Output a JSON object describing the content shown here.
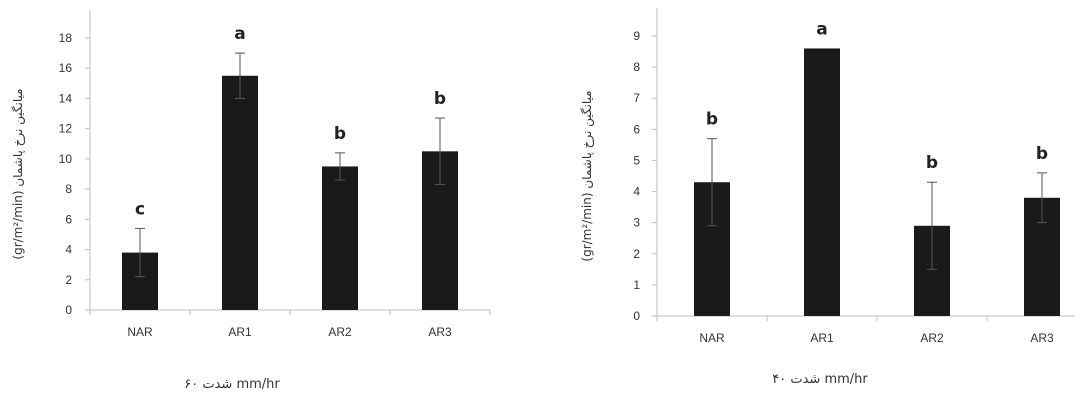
{
  "chart_data": [
    {
      "type": "bar",
      "categories": [
        "NAR",
        "AR1",
        "AR2",
        "AR3"
      ],
      "values": [
        3.8,
        15.5,
        9.5,
        10.5
      ],
      "errors": [
        1.6,
        1.5,
        0.9,
        2.2
      ],
      "significance": [
        "c",
        "a",
        "b",
        "b"
      ],
      "ylim": [
        0,
        18
      ],
      "yticks": [
        "0",
        "2",
        "4",
        "6",
        "8",
        "10",
        "12",
        "14",
        "16",
        "18"
      ],
      "ylabel": "(gr/m²/min) میانگین نرخ پاشمان",
      "xlabel": "شدت ۶۰ mm/hr",
      "bar_color": "#1a1a1a"
    },
    {
      "type": "bar",
      "categories": [
        "NAR",
        "AR1",
        "AR2",
        "AR3"
      ],
      "values": [
        4.3,
        8.6,
        2.9,
        3.8
      ],
      "errors": [
        1.4,
        0.0,
        1.4,
        0.8
      ],
      "significance": [
        "b",
        "a",
        "b",
        "b"
      ],
      "ylim": [
        0,
        9
      ],
      "yticks": [
        "0",
        "1",
        "2",
        "3",
        "4",
        "5",
        "6",
        "7",
        "8",
        "9"
      ],
      "ylabel": "(gr/m²/min) میانگین نرخ پاشمان",
      "xlabel": "شدت ۴۰ mm/hr",
      "bar_color": "#1a1a1a"
    }
  ]
}
